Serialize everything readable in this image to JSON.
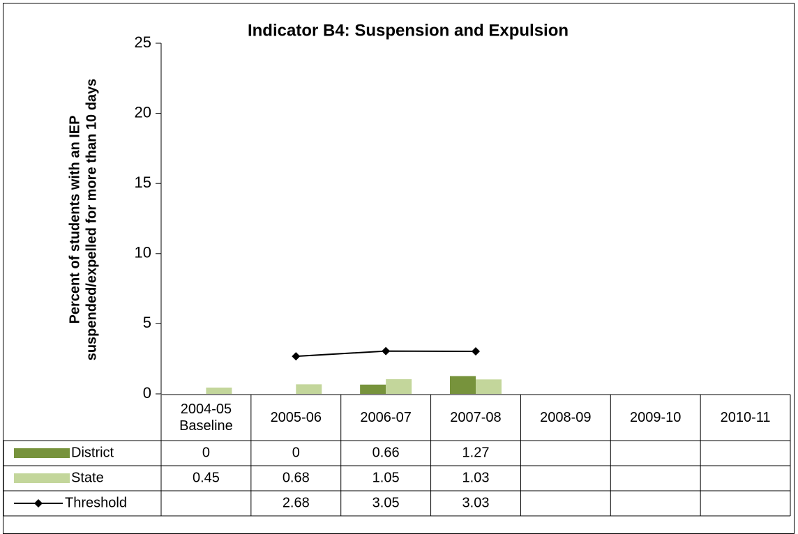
{
  "chart_data": {
    "type": "bar",
    "title": "Indicator B4: Suspension and Expulsion",
    "y_label": [
      "Percent of students with an IEP",
      "suspended/expelled for more than 10 days"
    ],
    "categories": [
      "2004-05 Baseline",
      "2005-06",
      "2006-07",
      "2007-08",
      "2008-09",
      "2009-10",
      "2010-11"
    ],
    "series": [
      {
        "name": "District",
        "type": "bar",
        "color": "#77933c",
        "values": [
          0,
          0,
          0.66,
          1.27,
          null,
          null,
          null
        ]
      },
      {
        "name": "State",
        "type": "bar",
        "color": "#c3d69b",
        "values": [
          0.45,
          0.68,
          1.05,
          1.03,
          null,
          null,
          null
        ]
      },
      {
        "name": "Threshold",
        "type": "line",
        "color": "#000000",
        "values": [
          null,
          2.68,
          3.05,
          3.03,
          null,
          null,
          null
        ]
      }
    ],
    "ylim": [
      0,
      25
    ],
    "yticks": [
      0,
      5,
      10,
      15,
      20,
      25
    ],
    "grid": false,
    "data_table": true
  }
}
